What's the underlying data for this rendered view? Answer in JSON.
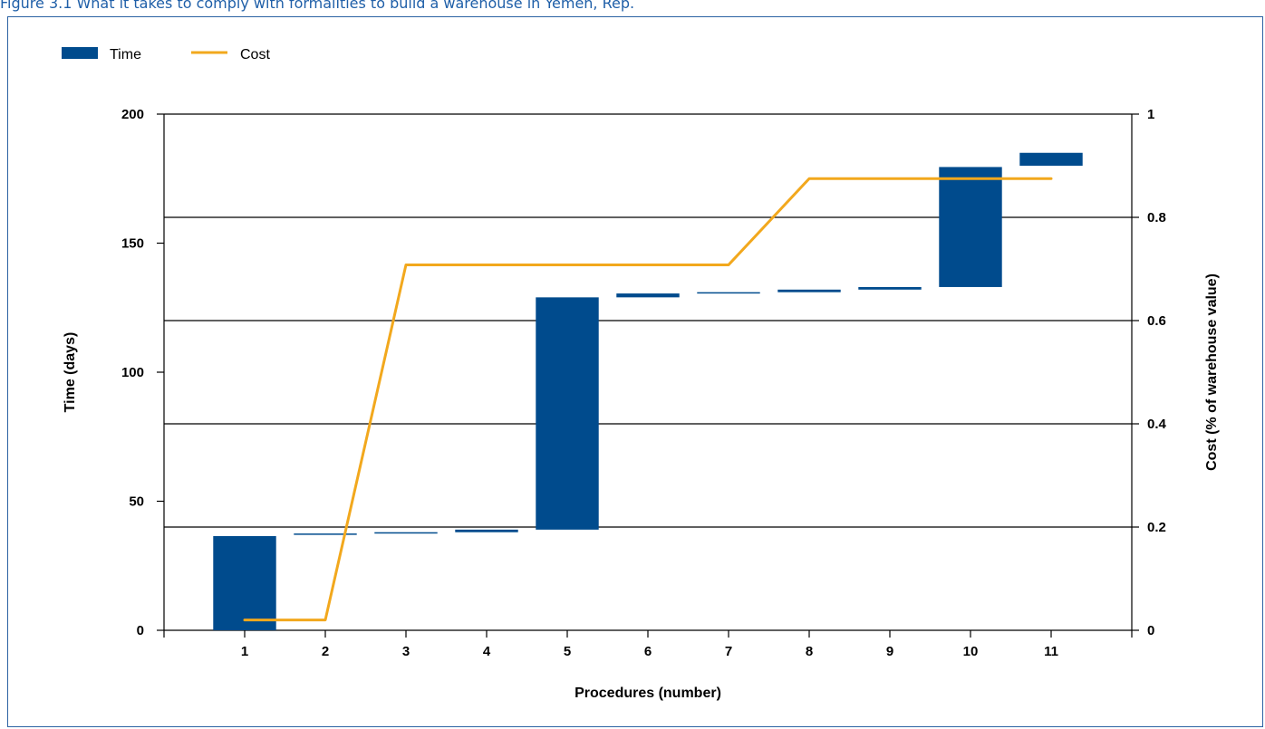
{
  "figure": {
    "title": "Figure 3.1 What it takes to comply with formalities to build a warehouse in Yemen, Rep."
  },
  "chart_data": {
    "type": "bar",
    "categories": [
      "1",
      "2",
      "3",
      "4",
      "5",
      "6",
      "7",
      "8",
      "9",
      "10",
      "11"
    ],
    "xlabel": "Procedures (number)",
    "ylabel": "Time (days)",
    "y2label": "Cost (% of warehouse value)",
    "ylim": [
      0,
      200
    ],
    "y2lim": [
      0,
      1
    ],
    "yticks": [
      "0",
      "50",
      "100",
      "150",
      "200"
    ],
    "y2ticks": [
      "0",
      "0.2",
      "0.4",
      "0.6",
      "0.8",
      "1"
    ],
    "grid": true,
    "legend_position": "top-left",
    "series": [
      {
        "name": "Time",
        "kind": "floating-bar",
        "color": "#004b8d",
        "start": [
          0,
          37,
          37.5,
          38,
          39,
          129,
          130.5,
          131,
          132,
          133,
          180
        ],
        "end": [
          36.5,
          37.5,
          38,
          39,
          129,
          130.5,
          131,
          132,
          133,
          179.5,
          185
        ]
      },
      {
        "name": "Cost",
        "kind": "line",
        "color": "#f2a81d",
        "values": [
          0.02,
          0.02,
          0.708,
          0.708,
          0.708,
          0.708,
          0.708,
          0.875,
          0.875,
          0.875,
          0.875
        ]
      }
    ]
  }
}
